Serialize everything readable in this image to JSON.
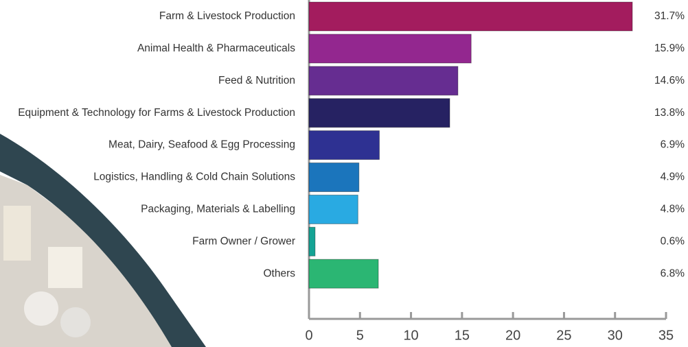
{
  "chart_data": {
    "type": "bar",
    "orientation": "horizontal",
    "categories": [
      "Farm & Livestock Production",
      "Animal Health & Pharmaceuticals",
      "Feed & Nutrition",
      "Equipment & Technology for Farms & Livestock Production",
      "Meat, Dairy, Seafood & Egg Processing",
      "Logistics, Handling & Cold Chain Solutions",
      "Packaging, Materials & Labelling",
      "Farm Owner / Grower",
      "Others"
    ],
    "values": [
      31.7,
      15.9,
      14.6,
      13.8,
      6.9,
      4.9,
      4.8,
      0.6,
      6.8
    ],
    "value_labels": [
      "31.7%",
      "15.9%",
      "14.6%",
      "13.8%",
      "6.9%",
      "4.9%",
      "4.8%",
      "0.6%",
      "6.8%"
    ],
    "colors": [
      "#a31c5e",
      "#93278f",
      "#662d91",
      "#262262",
      "#2e3192",
      "#1b75bc",
      "#29aae2",
      "#14a394",
      "#2bb673"
    ],
    "xlim": [
      0,
      35
    ],
    "xticks": [
      0,
      5,
      10,
      15,
      20,
      25,
      30,
      35
    ]
  }
}
